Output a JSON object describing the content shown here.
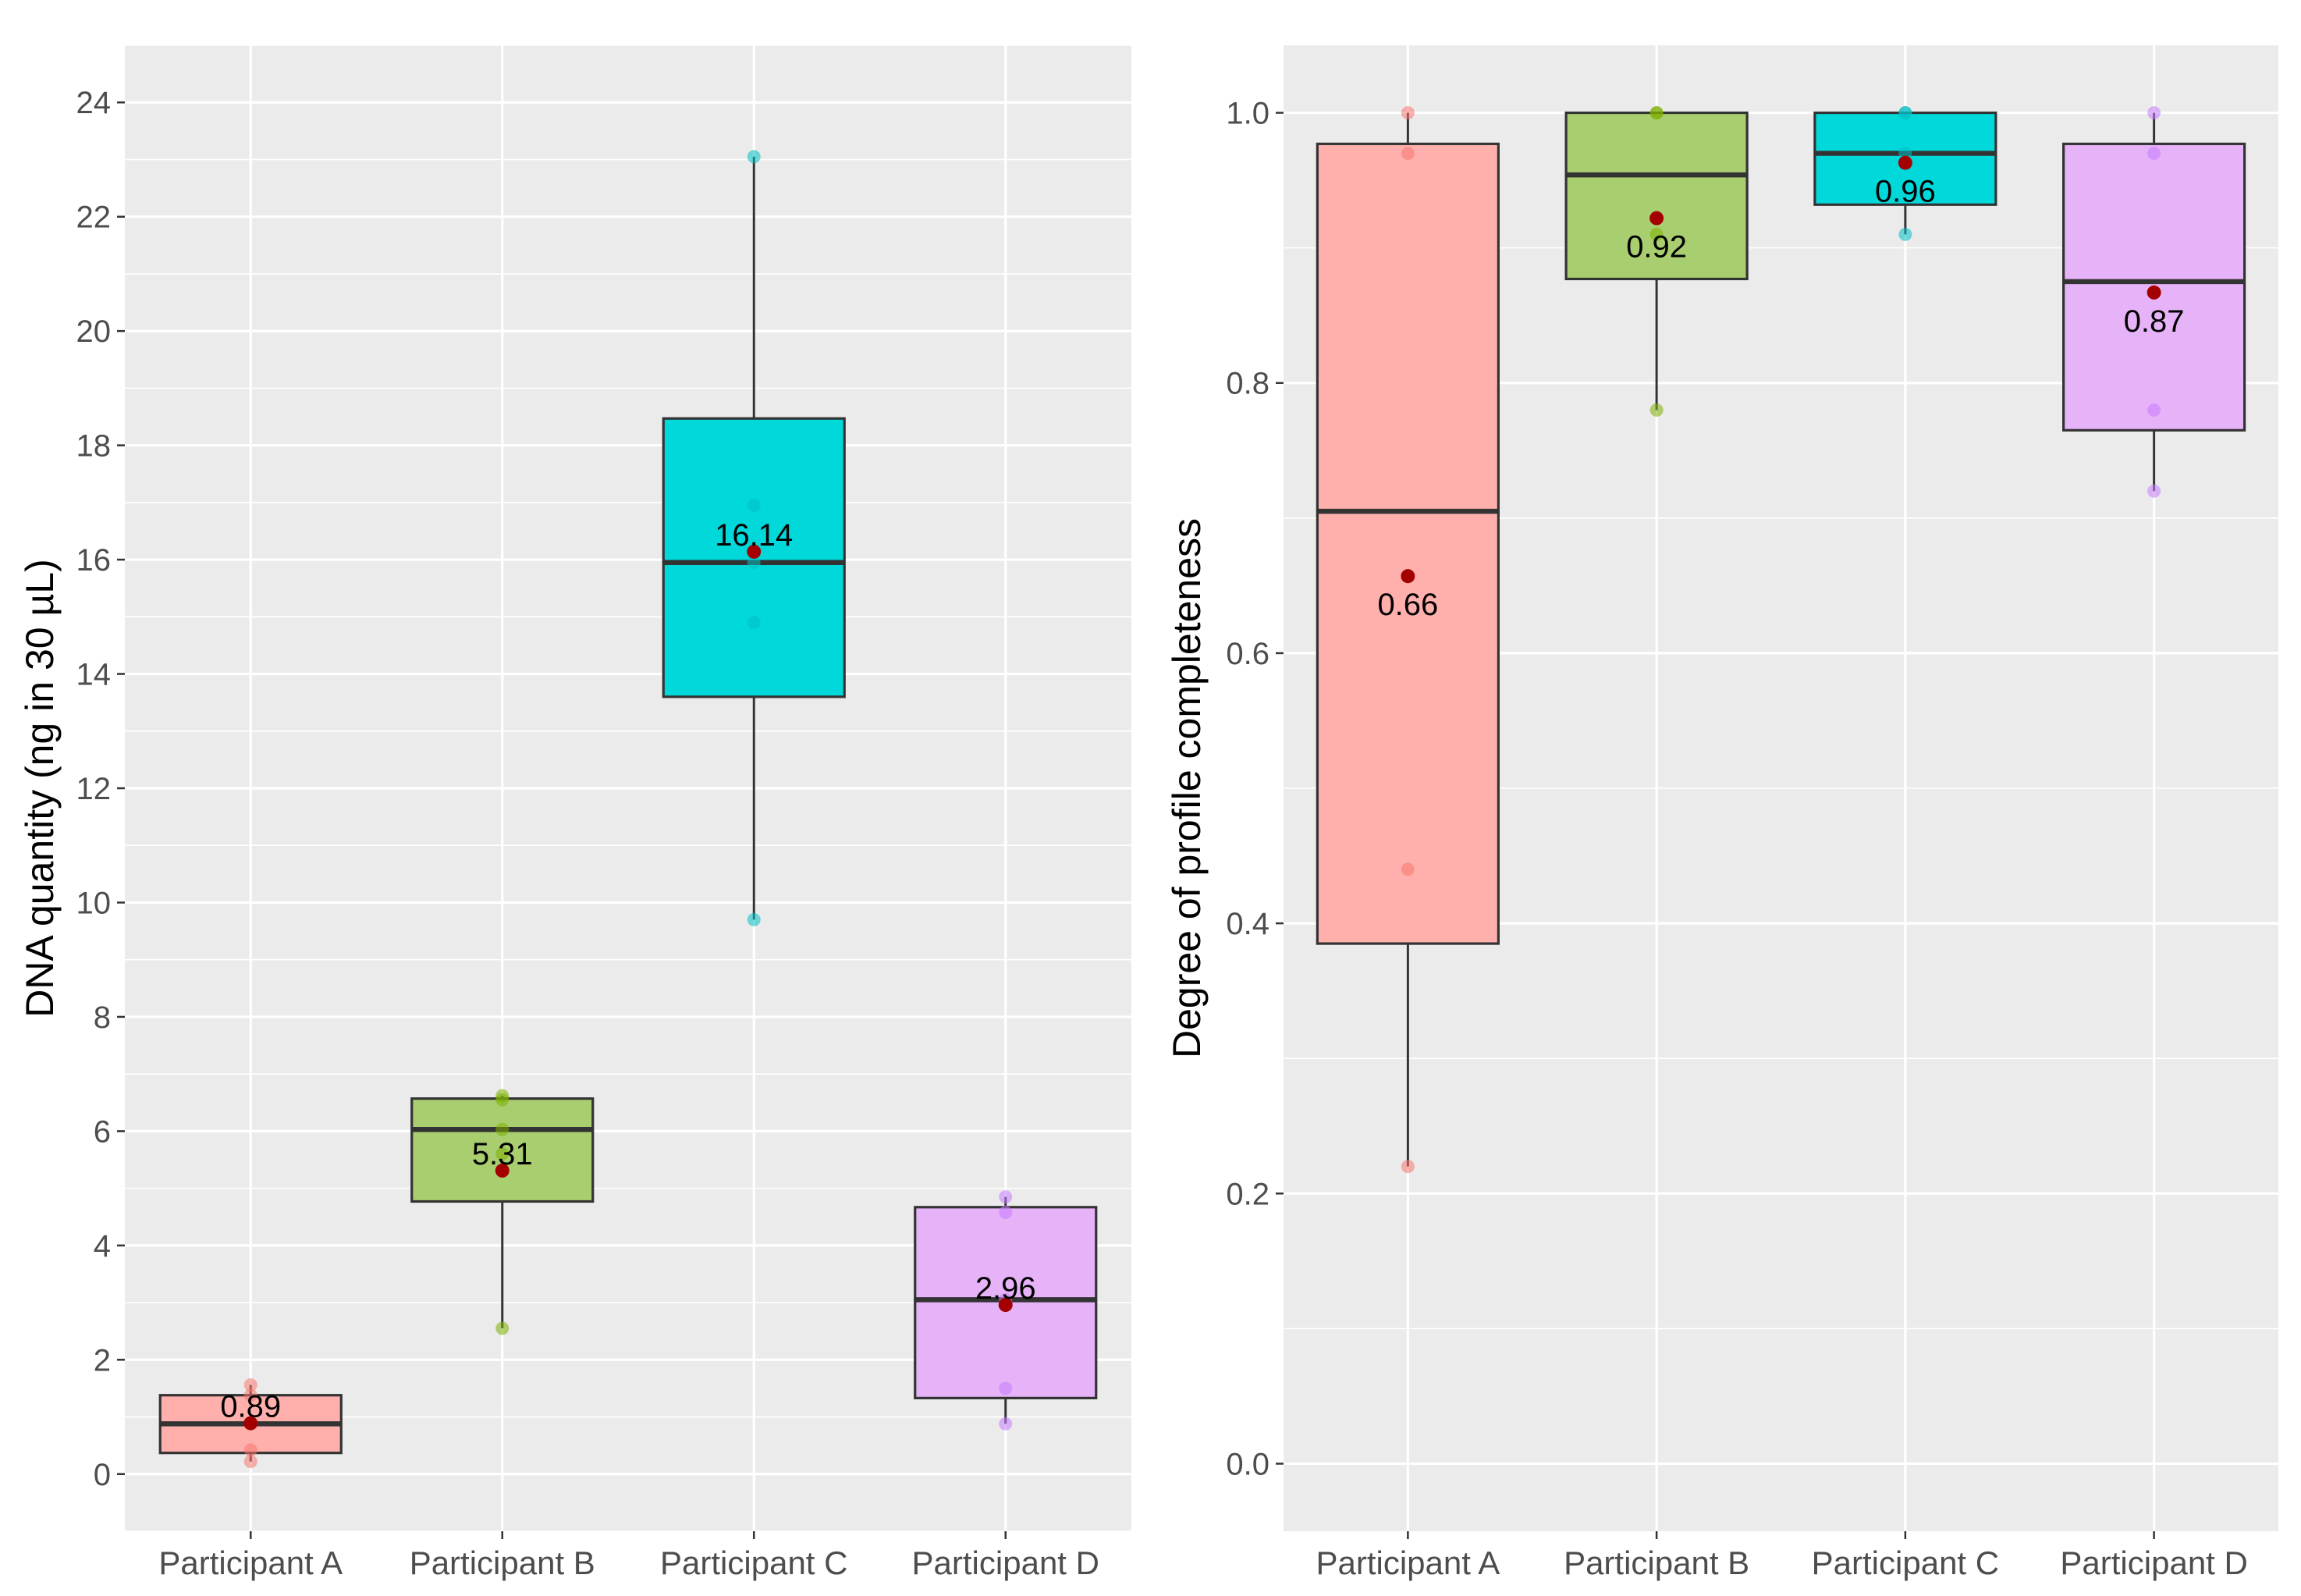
{
  "chart_data": [
    {
      "type": "boxplot",
      "title": "",
      "xlabel": "",
      "ylabel": "DNA quantity (ng in 30 µL)",
      "ylim": [
        -1,
        25
      ],
      "yticks": [
        0,
        2,
        4,
        6,
        8,
        10,
        12,
        14,
        16,
        18,
        20,
        22,
        24
      ],
      "categories": [
        "Participant A",
        "Participant B",
        "Participant C",
        "Participant D"
      ],
      "colors": [
        "#FFB0AD",
        "#A9CE70",
        "#00D8DA",
        "#E6B2F8"
      ],
      "point_colors": [
        "#F8766D",
        "#7CAE00",
        "#00BFC4",
        "#C77CFF"
      ],
      "boxes": [
        {
          "lower_whisker": 0.22,
          "q1": 0.37,
          "median": 0.88,
          "q3": 1.38,
          "upper_whisker": 1.56,
          "mean": 0.89,
          "mean_label": "0.89",
          "points": [
            0.22,
            0.42,
            0.88,
            1.38,
            1.56
          ]
        },
        {
          "lower_whisker": 2.55,
          "q1": 4.77,
          "median": 6.03,
          "q3": 6.57,
          "upper_whisker": 6.62,
          "mean": 5.31,
          "mean_label": "5.31",
          "points": [
            2.55,
            5.6,
            6.03,
            6.55,
            6.62
          ]
        },
        {
          "lower_whisker": 9.7,
          "q1": 13.6,
          "median": 15.95,
          "q3": 18.47,
          "upper_whisker": 23.05,
          "mean": 16.14,
          "mean_label": "16.14",
          "points": [
            9.7,
            14.9,
            15.95,
            16.95,
            23.05
          ]
        },
        {
          "lower_whisker": 0.88,
          "q1": 1.33,
          "median": 3.05,
          "q3": 4.67,
          "upper_whisker": 4.85,
          "mean": 2.96,
          "mean_label": "2.96",
          "points": [
            0.88,
            1.5,
            3.05,
            4.58,
            4.85
          ]
        }
      ]
    },
    {
      "type": "boxplot",
      "title": "",
      "xlabel": "",
      "ylabel": "Degree of profile completeness",
      "ylim": [
        -0.05,
        1.05
      ],
      "yticks": [
        0.0,
        0.2,
        0.4,
        0.6,
        0.8,
        1.0
      ],
      "ytick_labels": [
        "0.0",
        "0.2",
        "0.4",
        "0.6",
        "0.8",
        "1.0"
      ],
      "categories": [
        "Participant A",
        "Participant B",
        "Participant C",
        "Participant D"
      ],
      "colors": [
        "#FFB0AD",
        "#A9CE70",
        "#00D8DA",
        "#E6B2F8"
      ],
      "point_colors": [
        "#F8766D",
        "#7CAE00",
        "#00BFC4",
        "#C77CFF"
      ],
      "boxes": [
        {
          "lower_whisker": 0.22,
          "q1": 0.385,
          "median": 0.705,
          "q3": 0.977,
          "upper_whisker": 1.0,
          "mean": 0.657,
          "mean_label": "0.66",
          "points": [
            0.22,
            0.44,
            0.97,
            1.0
          ]
        },
        {
          "lower_whisker": 0.78,
          "q1": 0.877,
          "median": 0.954,
          "q3": 1.0,
          "upper_whisker": 1.0,
          "mean": 0.922,
          "mean_label": "0.92",
          "points": [
            0.78,
            0.91,
            1.0,
            1.0
          ]
        },
        {
          "lower_whisker": 0.91,
          "q1": 0.932,
          "median": 0.97,
          "q3": 1.0,
          "upper_whisker": 1.0,
          "mean": 0.963,
          "mean_label": "0.96",
          "points": [
            0.91,
            0.97,
            1.0,
            1.0
          ]
        },
        {
          "lower_whisker": 0.72,
          "q1": 0.765,
          "median": 0.875,
          "q3": 0.977,
          "upper_whisker": 1.0,
          "mean": 0.867,
          "mean_label": "0.87",
          "points": [
            0.72,
            0.78,
            0.97,
            1.0
          ]
        }
      ]
    }
  ]
}
